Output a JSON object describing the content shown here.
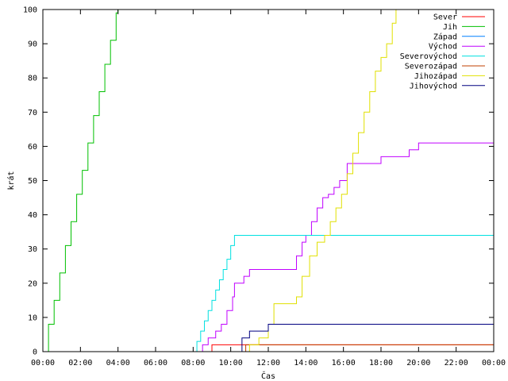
{
  "chart_data": {
    "type": "line",
    "title": "",
    "xlabel": "Čas",
    "ylabel": "krát",
    "xlim": [
      0,
      24
    ],
    "ylim": [
      0,
      100
    ],
    "x_tick_values": [
      0,
      2,
      4,
      6,
      8,
      10,
      12,
      14,
      16,
      18,
      20,
      22,
      24
    ],
    "x_tick_labels": [
      "00:00",
      "02:00",
      "04:00",
      "06:00",
      "08:00",
      "10:00",
      "12:00",
      "14:00",
      "16:00",
      "18:00",
      "20:00",
      "22:00",
      "00:00"
    ],
    "y_ticks": [
      0,
      10,
      20,
      30,
      40,
      50,
      60,
      70,
      80,
      90,
      100
    ],
    "grid": false,
    "legend_position": "top-right",
    "step_lines": true,
    "series": [
      {
        "name": "Sever",
        "color": "#ff0000",
        "x": [
          0,
          8.9,
          9.0,
          15.1,
          15.2,
          24
        ],
        "y": [
          0,
          0,
          2,
          2,
          2,
          2
        ]
      },
      {
        "name": "Jih",
        "color": "#00c000",
        "x": [
          0,
          0.3,
          0.6,
          0.9,
          1.2,
          1.5,
          1.8,
          2.1,
          2.4,
          2.7,
          3.0,
          3.3,
          3.6,
          3.9,
          4.0
        ],
        "y": [
          0,
          8,
          15,
          23,
          31,
          38,
          46,
          53,
          61,
          69,
          76,
          84,
          91,
          99,
          100
        ]
      },
      {
        "name": "Západ",
        "color": "#0080ff",
        "x": [
          0,
          24
        ],
        "y": [
          0,
          0
        ]
      },
      {
        "name": "Východ",
        "color": "#c000ff",
        "x": [
          0,
          8.3,
          8.5,
          8.8,
          9.2,
          9.5,
          9.8,
          10.1,
          10.2,
          10.5,
          10.7,
          11.0,
          11.8,
          12.5,
          13.0,
          13.5,
          13.8,
          14.0,
          14.3,
          14.6,
          14.9,
          15.2,
          15.5,
          15.8,
          16.2,
          16.8,
          17.5,
          18.0,
          18.8,
          19.5,
          20.0,
          24
        ],
        "y": [
          0,
          0,
          2,
          4,
          6,
          8,
          12,
          16,
          20,
          20,
          22,
          24,
          24,
          24,
          24,
          28,
          32,
          34,
          38,
          42,
          45,
          46,
          48,
          50,
          55,
          55,
          55,
          57,
          57,
          59,
          61,
          61
        ]
      },
      {
        "name": "Severovýchod",
        "color": "#00e0e0",
        "x": [
          0,
          8.0,
          8.2,
          8.4,
          8.6,
          8.8,
          9.0,
          9.2,
          9.4,
          9.6,
          9.8,
          10.0,
          10.2,
          24
        ],
        "y": [
          0,
          0,
          3,
          6,
          9,
          12,
          15,
          18,
          21,
          24,
          27,
          31,
          34,
          34
        ]
      },
      {
        "name": "Severozápad",
        "color": "#c04000",
        "x": [
          0,
          10.7,
          10.8,
          24
        ],
        "y": [
          0,
          0,
          2,
          2
        ]
      },
      {
        "name": "Jihozápad",
        "color": "#e0e000",
        "x": [
          0,
          10.8,
          11.0,
          11.5,
          12.0,
          12.3,
          12.8,
          13.5,
          13.8,
          14.2,
          14.6,
          15.0,
          15.3,
          15.6,
          15.9,
          16.2,
          16.5,
          16.8,
          17.1,
          17.4,
          17.7,
          18.0,
          18.3,
          18.6,
          18.8
        ],
        "y": [
          0,
          0,
          2,
          4,
          8,
          14,
          14,
          16,
          22,
          28,
          32,
          34,
          38,
          42,
          46,
          52,
          58,
          64,
          70,
          76,
          82,
          86,
          90,
          96,
          100
        ]
      },
      {
        "name": "Jihovýchod",
        "color": "#000080",
        "x": [
          0,
          10.5,
          10.6,
          11.0,
          11.5,
          12.0,
          24
        ],
        "y": [
          0,
          0,
          4,
          6,
          6,
          8,
          8
        ]
      }
    ]
  }
}
